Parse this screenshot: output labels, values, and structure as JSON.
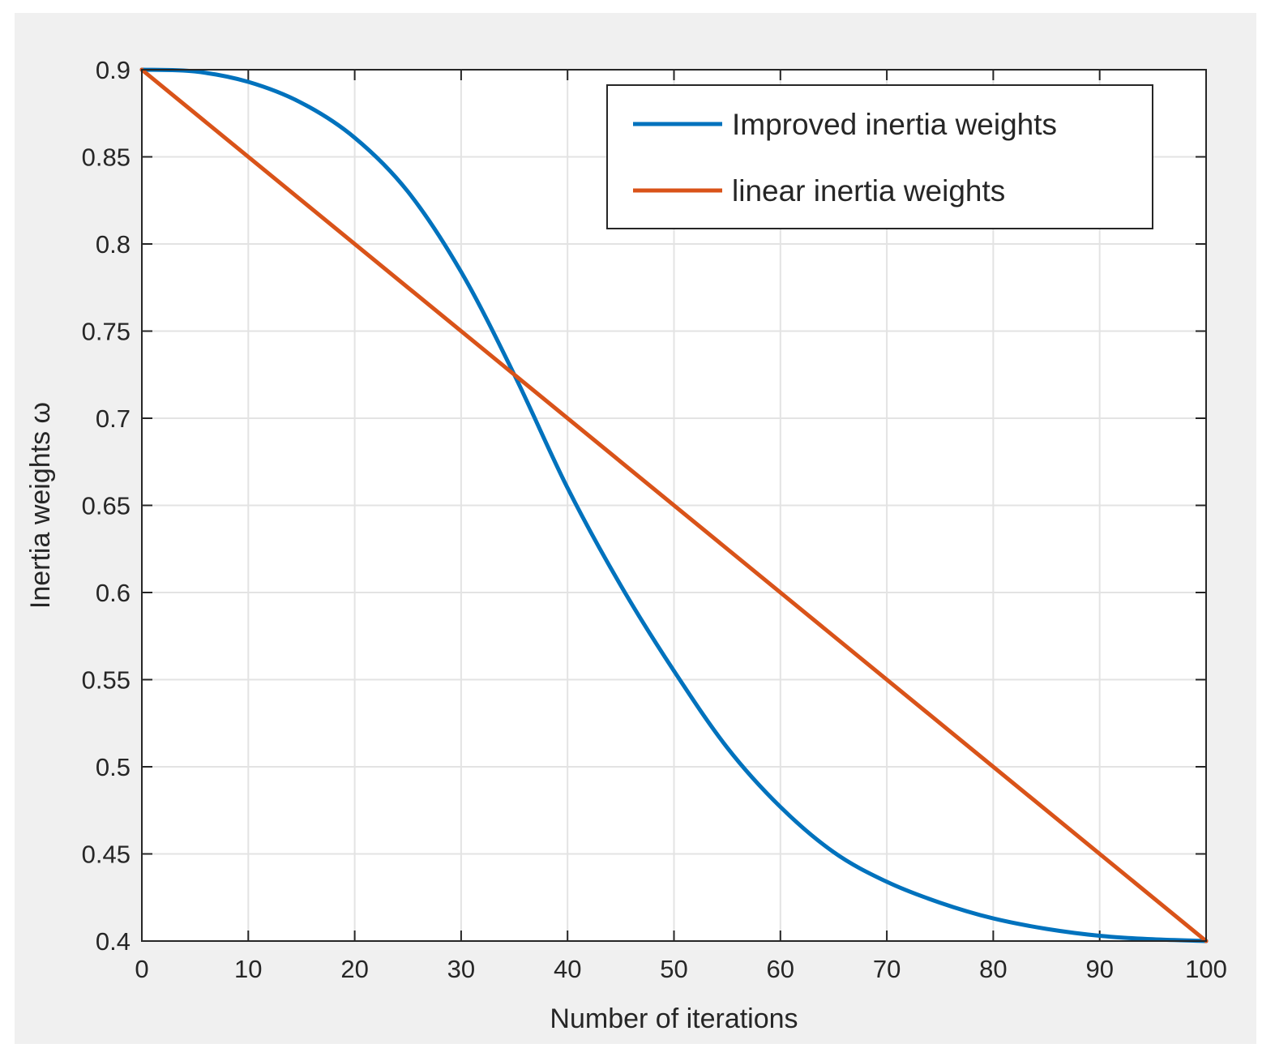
{
  "chart_data": {
    "type": "line",
    "title": "",
    "xlabel": "Number of iterations",
    "ylabel": "Inertia weights ω",
    "xlim": [
      0,
      100
    ],
    "ylim": [
      0.4,
      0.9
    ],
    "xticks": [
      0,
      10,
      20,
      30,
      40,
      50,
      60,
      70,
      80,
      90,
      100
    ],
    "xtick_labels": [
      "0",
      "10",
      "20",
      "30",
      "40",
      "50",
      "60",
      "70",
      "80",
      "90",
      "100"
    ],
    "yticks": [
      0.4,
      0.45,
      0.5,
      0.55,
      0.6,
      0.65,
      0.7,
      0.75,
      0.8,
      0.85,
      0.9
    ],
    "ytick_labels": [
      "0.4",
      "0.45",
      "0.5",
      "0.55",
      "0.6",
      "0.65",
      "0.7",
      "0.75",
      "0.8",
      "0.85",
      "0.9"
    ],
    "grid": true,
    "legend_position": "top-right",
    "series": [
      {
        "name": "Improved inertia weights",
        "color": "#0072BD",
        "x": [
          0,
          5,
          10,
          15,
          20,
          25,
          30,
          35,
          40,
          45,
          50,
          55,
          60,
          65,
          70,
          75,
          80,
          85,
          90,
          95,
          100
        ],
        "y": [
          0.9,
          0.899,
          0.893,
          0.881,
          0.861,
          0.83,
          0.784,
          0.725,
          0.66,
          0.604,
          0.555,
          0.511,
          0.477,
          0.451,
          0.434,
          0.422,
          0.413,
          0.407,
          0.403,
          0.401,
          0.4
        ]
      },
      {
        "name": "linear inertia weights",
        "color": "#D95319",
        "x": [
          0,
          100
        ],
        "y": [
          0.9,
          0.4
        ]
      }
    ]
  }
}
